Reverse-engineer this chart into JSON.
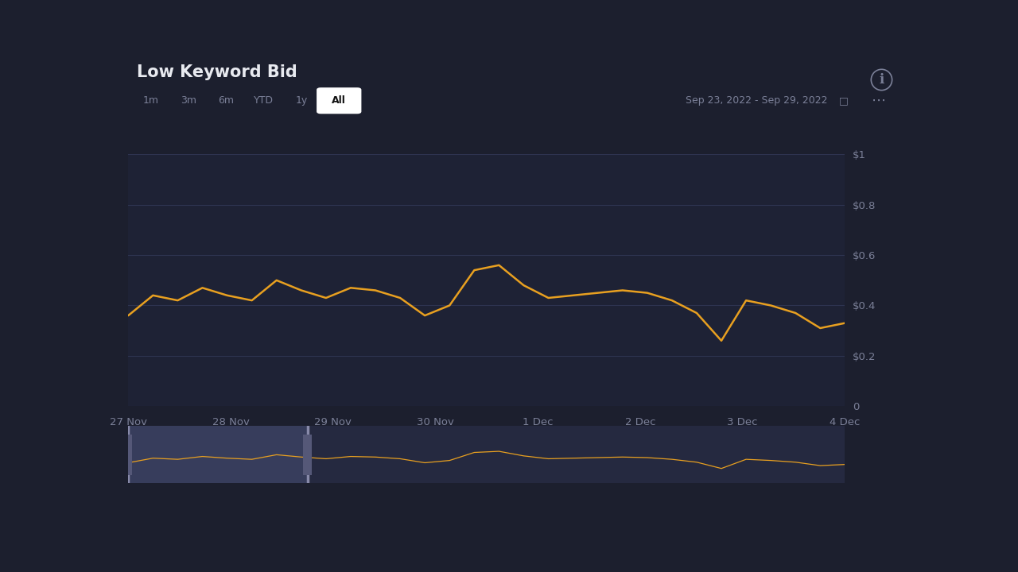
{
  "title": "Low Keyword Bid",
  "date_range": "Sep 23, 2022 - Sep 29, 2022",
  "filter_buttons": [
    "1m",
    "3m",
    "6m",
    "YTD",
    "1y",
    "All"
  ],
  "active_button": "All",
  "x_labels": [
    "27 Nov",
    "28 Nov",
    "29 Nov",
    "30 Nov",
    "1 Dec",
    "2 Dec",
    "3 Dec",
    "4 Dec"
  ],
  "y_values": [
    0.36,
    0.44,
    0.42,
    0.47,
    0.44,
    0.42,
    0.5,
    0.46,
    0.43,
    0.47,
    0.46,
    0.43,
    0.36,
    0.4,
    0.54,
    0.56,
    0.48,
    0.43,
    0.44,
    0.45,
    0.46,
    0.45,
    0.42,
    0.37,
    0.26,
    0.42,
    0.4,
    0.37,
    0.31,
    0.33
  ],
  "line_color": "#E8A020",
  "line_width": 1.8,
  "bg_color": "#1c1f2e",
  "panel_color": "#22263a",
  "panel_color2": "#1e2235",
  "grid_color": "#2e3450",
  "text_color": "#e8eaf0",
  "muted_text_color": "#7b8098",
  "ytick_labels": [
    "0",
    "$0.2",
    "$0.4",
    "$0.6",
    "$0.8",
    "$1"
  ],
  "ytick_values": [
    0,
    0.2,
    0.4,
    0.6,
    0.8,
    1.0
  ],
  "ylim": [
    0,
    1.0
  ],
  "title_fontsize": 15,
  "axis_fontsize": 9.5,
  "button_fontsize": 9
}
